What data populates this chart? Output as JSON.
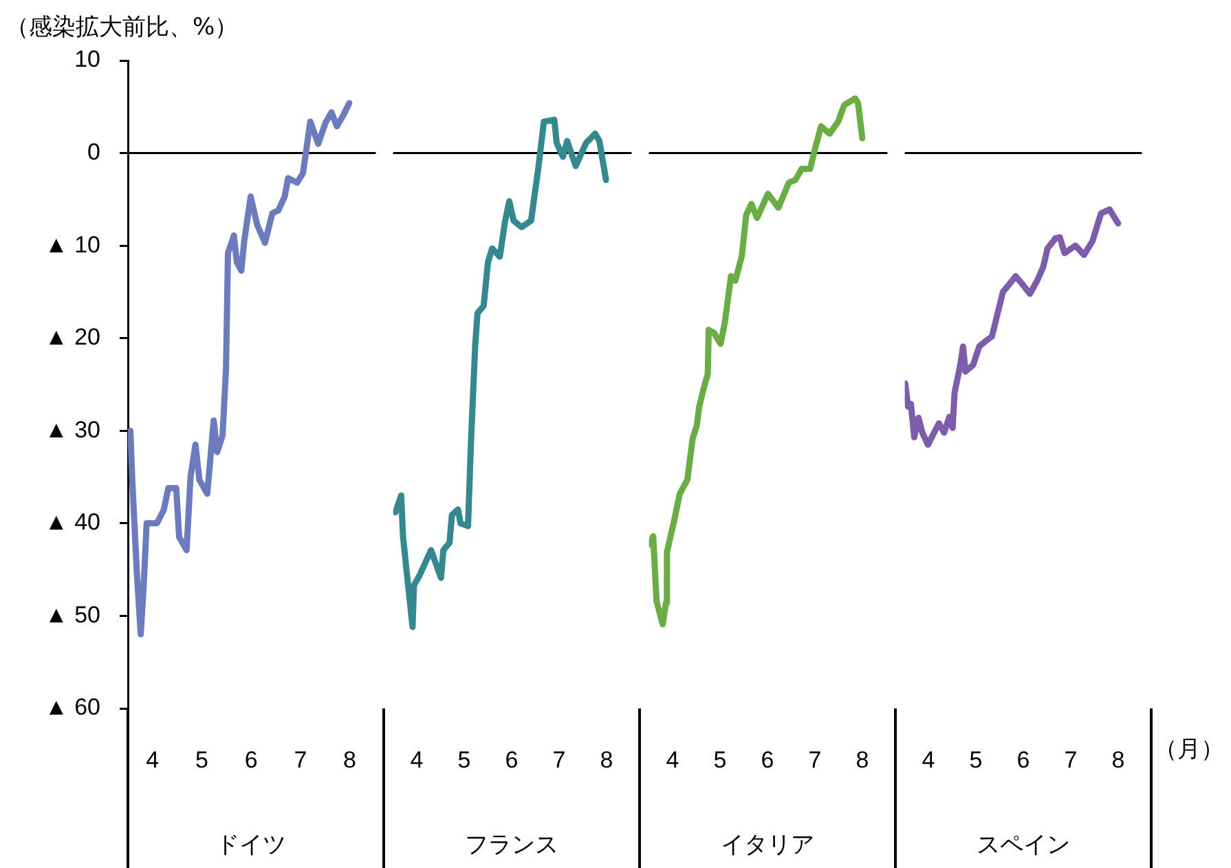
{
  "chart_data": [
    {
      "type": "line",
      "xlabel": "ドイツ",
      "ylabel": "（感染拡大前比、%）",
      "xlim": [
        3.5,
        8.5
      ],
      "xticks": [
        4,
        5,
        6,
        7,
        8
      ],
      "ylim": [
        -60,
        10
      ],
      "yticks": [
        10,
        0,
        {
          "value": -10,
          "label": "▲ 10"
        },
        {
          "value": -20,
          "label": "▲ 20"
        },
        {
          "value": -30,
          "label": "▲ 30"
        },
        {
          "value": -40,
          "label": "▲ 40"
        },
        {
          "value": -50,
          "label": "▲ 50"
        },
        {
          "value": -60,
          "label": "▲ 60"
        }
      ],
      "ref_lines": [
        {
          "axis": "y",
          "value": 0,
          "color": "#000000"
        }
      ],
      "series": [
        {
          "color": "#6b7bbd",
          "x": [
            3.55,
            3.59,
            3.68,
            3.76,
            3.82,
            3.88,
            4.09,
            4.23,
            4.32,
            4.48,
            4.54,
            4.69,
            4.77,
            4.87,
            4.95,
            5.11,
            5.24,
            5.31,
            5.42,
            5.49,
            5.53,
            5.65,
            5.71,
            5.8,
            5.86,
            5.99,
            6.12,
            6.28,
            6.43,
            6.55,
            6.68,
            6.75,
            6.93,
            7.05,
            7.2,
            7.36,
            7.51,
            7.63,
            7.74,
            7.87,
            7.99
          ],
          "values": [
            -30.0,
            -35.5,
            -45.2,
            -52.0,
            -46.7,
            -40.0,
            -40.0,
            -38.5,
            -36.2,
            -36.2,
            -41.5,
            -42.9,
            -35.0,
            -31.5,
            -35.3,
            -36.8,
            -28.9,
            -32.3,
            -30.5,
            -23.3,
            -10.8,
            -8.9,
            -11.8,
            -12.7,
            -9.5,
            -4.7,
            -7.7,
            -9.7,
            -6.5,
            -6.2,
            -4.7,
            -2.7,
            -3.2,
            -2.2,
            3.4,
            1.0,
            3.3,
            4.4,
            2.9,
            4.1,
            5.4
          ]
        }
      ]
    },
    {
      "type": "line",
      "xlabel": "フランス",
      "xlim": [
        3.5,
        8.5
      ],
      "xticks": [
        4,
        5,
        6,
        7,
        8
      ],
      "ylim": [
        -60,
        10
      ],
      "tick_labels": "x",
      "ref_lines": [
        {
          "axis": "y",
          "value": 0,
          "color": "#000000"
        }
      ],
      "series": [
        {
          "color": "#34898f",
          "x": [
            3.55,
            3.67,
            3.71,
            3.91,
            3.94,
            4.06,
            4.3,
            4.51,
            4.56,
            4.69,
            4.74,
            4.87,
            4.92,
            5.08,
            5.14,
            5.23,
            5.28,
            5.41,
            5.5,
            5.59,
            5.75,
            5.86,
            5.95,
            6.04,
            6.21,
            6.41,
            6.56,
            6.68,
            6.9,
            6.95,
            7.08,
            7.17,
            7.35,
            7.57,
            7.76,
            7.85,
            7.99
          ],
          "values": [
            -38.8,
            -37.0,
            -41.5,
            -51.2,
            -46.7,
            -45.6,
            -42.9,
            -45.9,
            -42.9,
            -42.1,
            -39.1,
            -38.5,
            -40.0,
            -40.3,
            -31.5,
            -20.9,
            -17.3,
            -16.5,
            -11.8,
            -10.3,
            -11.2,
            -7.4,
            -5.2,
            -7.3,
            -8.0,
            -7.3,
            -1.7,
            3.4,
            3.6,
            1.1,
            -0.4,
            1.3,
            -1.4,
            1.1,
            2.1,
            1.3,
            -2.9
          ]
        }
      ]
    },
    {
      "type": "line",
      "xlabel": "イタリア",
      "xlim": [
        3.5,
        8.5
      ],
      "xticks": [
        4,
        5,
        6,
        7,
        8
      ],
      "ylim": [
        -60,
        10
      ],
      "tick_labels": "x",
      "ref_lines": [
        {
          "axis": "y",
          "value": 0,
          "color": "#000000"
        }
      ],
      "series": [
        {
          "color": "#6aad45",
          "x": [
            3.52,
            3.59,
            3.66,
            3.79,
            3.86,
            3.88,
            4.02,
            4.15,
            4.31,
            4.42,
            4.51,
            4.56,
            4.65,
            4.74,
            4.76,
            4.87,
            5.01,
            5.1,
            5.23,
            5.32,
            5.46,
            5.55,
            5.66,
            5.78,
            6.01,
            6.23,
            6.45,
            6.59,
            6.72,
            6.9,
            6.99,
            7.13,
            7.31,
            7.49,
            7.62,
            7.85,
            7.91,
            8.0
          ],
          "values": [
            -42.3,
            -41.4,
            -48.4,
            -50.9,
            -48.6,
            -43.1,
            -40.0,
            -36.8,
            -35.3,
            -30.9,
            -29.4,
            -27.4,
            -25.5,
            -23.9,
            -19.1,
            -19.4,
            -20.6,
            -18.3,
            -13.3,
            -13.8,
            -11.1,
            -6.7,
            -5.5,
            -7.0,
            -4.4,
            -5.9,
            -3.2,
            -2.9,
            -1.7,
            -1.7,
            0.2,
            2.9,
            2.1,
            3.4,
            5.2,
            5.9,
            5.4,
            1.6
          ]
        }
      ]
    },
    {
      "type": "line",
      "xlabel": "スペイン",
      "xlim": [
        3.5,
        8.5
      ],
      "xticks": [
        4,
        5,
        6,
        7,
        8
      ],
      "ylim": [
        -60,
        10
      ],
      "tick_labels": "x",
      "annotations": [
        "（月）"
      ],
      "ref_lines": [
        {
          "axis": "y",
          "value": 0,
          "color": "#000000"
        }
      ],
      "series": [
        {
          "color": "#7d5dab",
          "x": [
            3.51,
            3.57,
            3.63,
            3.7,
            3.79,
            3.87,
            3.99,
            4.22,
            4.33,
            4.44,
            4.51,
            4.55,
            4.67,
            4.73,
            4.78,
            4.94,
            5.07,
            5.21,
            5.34,
            5.43,
            5.57,
            5.7,
            5.84,
            5.97,
            6.14,
            6.29,
            6.42,
            6.51,
            6.68,
            6.77,
            6.87,
            7.1,
            7.28,
            7.46,
            7.64,
            7.82,
            8.0
          ],
          "values": [
            -24.9,
            -27.4,
            -27.1,
            -30.7,
            -28.6,
            -30.2,
            -31.5,
            -29.2,
            -30.2,
            -28.5,
            -29.7,
            -25.9,
            -22.9,
            -20.9,
            -23.6,
            -22.9,
            -20.9,
            -20.3,
            -19.8,
            -17.9,
            -15.0,
            -14.2,
            -13.3,
            -14.1,
            -15.2,
            -13.8,
            -12.3,
            -10.3,
            -9.2,
            -9.1,
            -10.8,
            -10.0,
            -11.0,
            -9.5,
            -6.5,
            -6.1,
            -7.6
          ]
        }
      ]
    }
  ]
}
